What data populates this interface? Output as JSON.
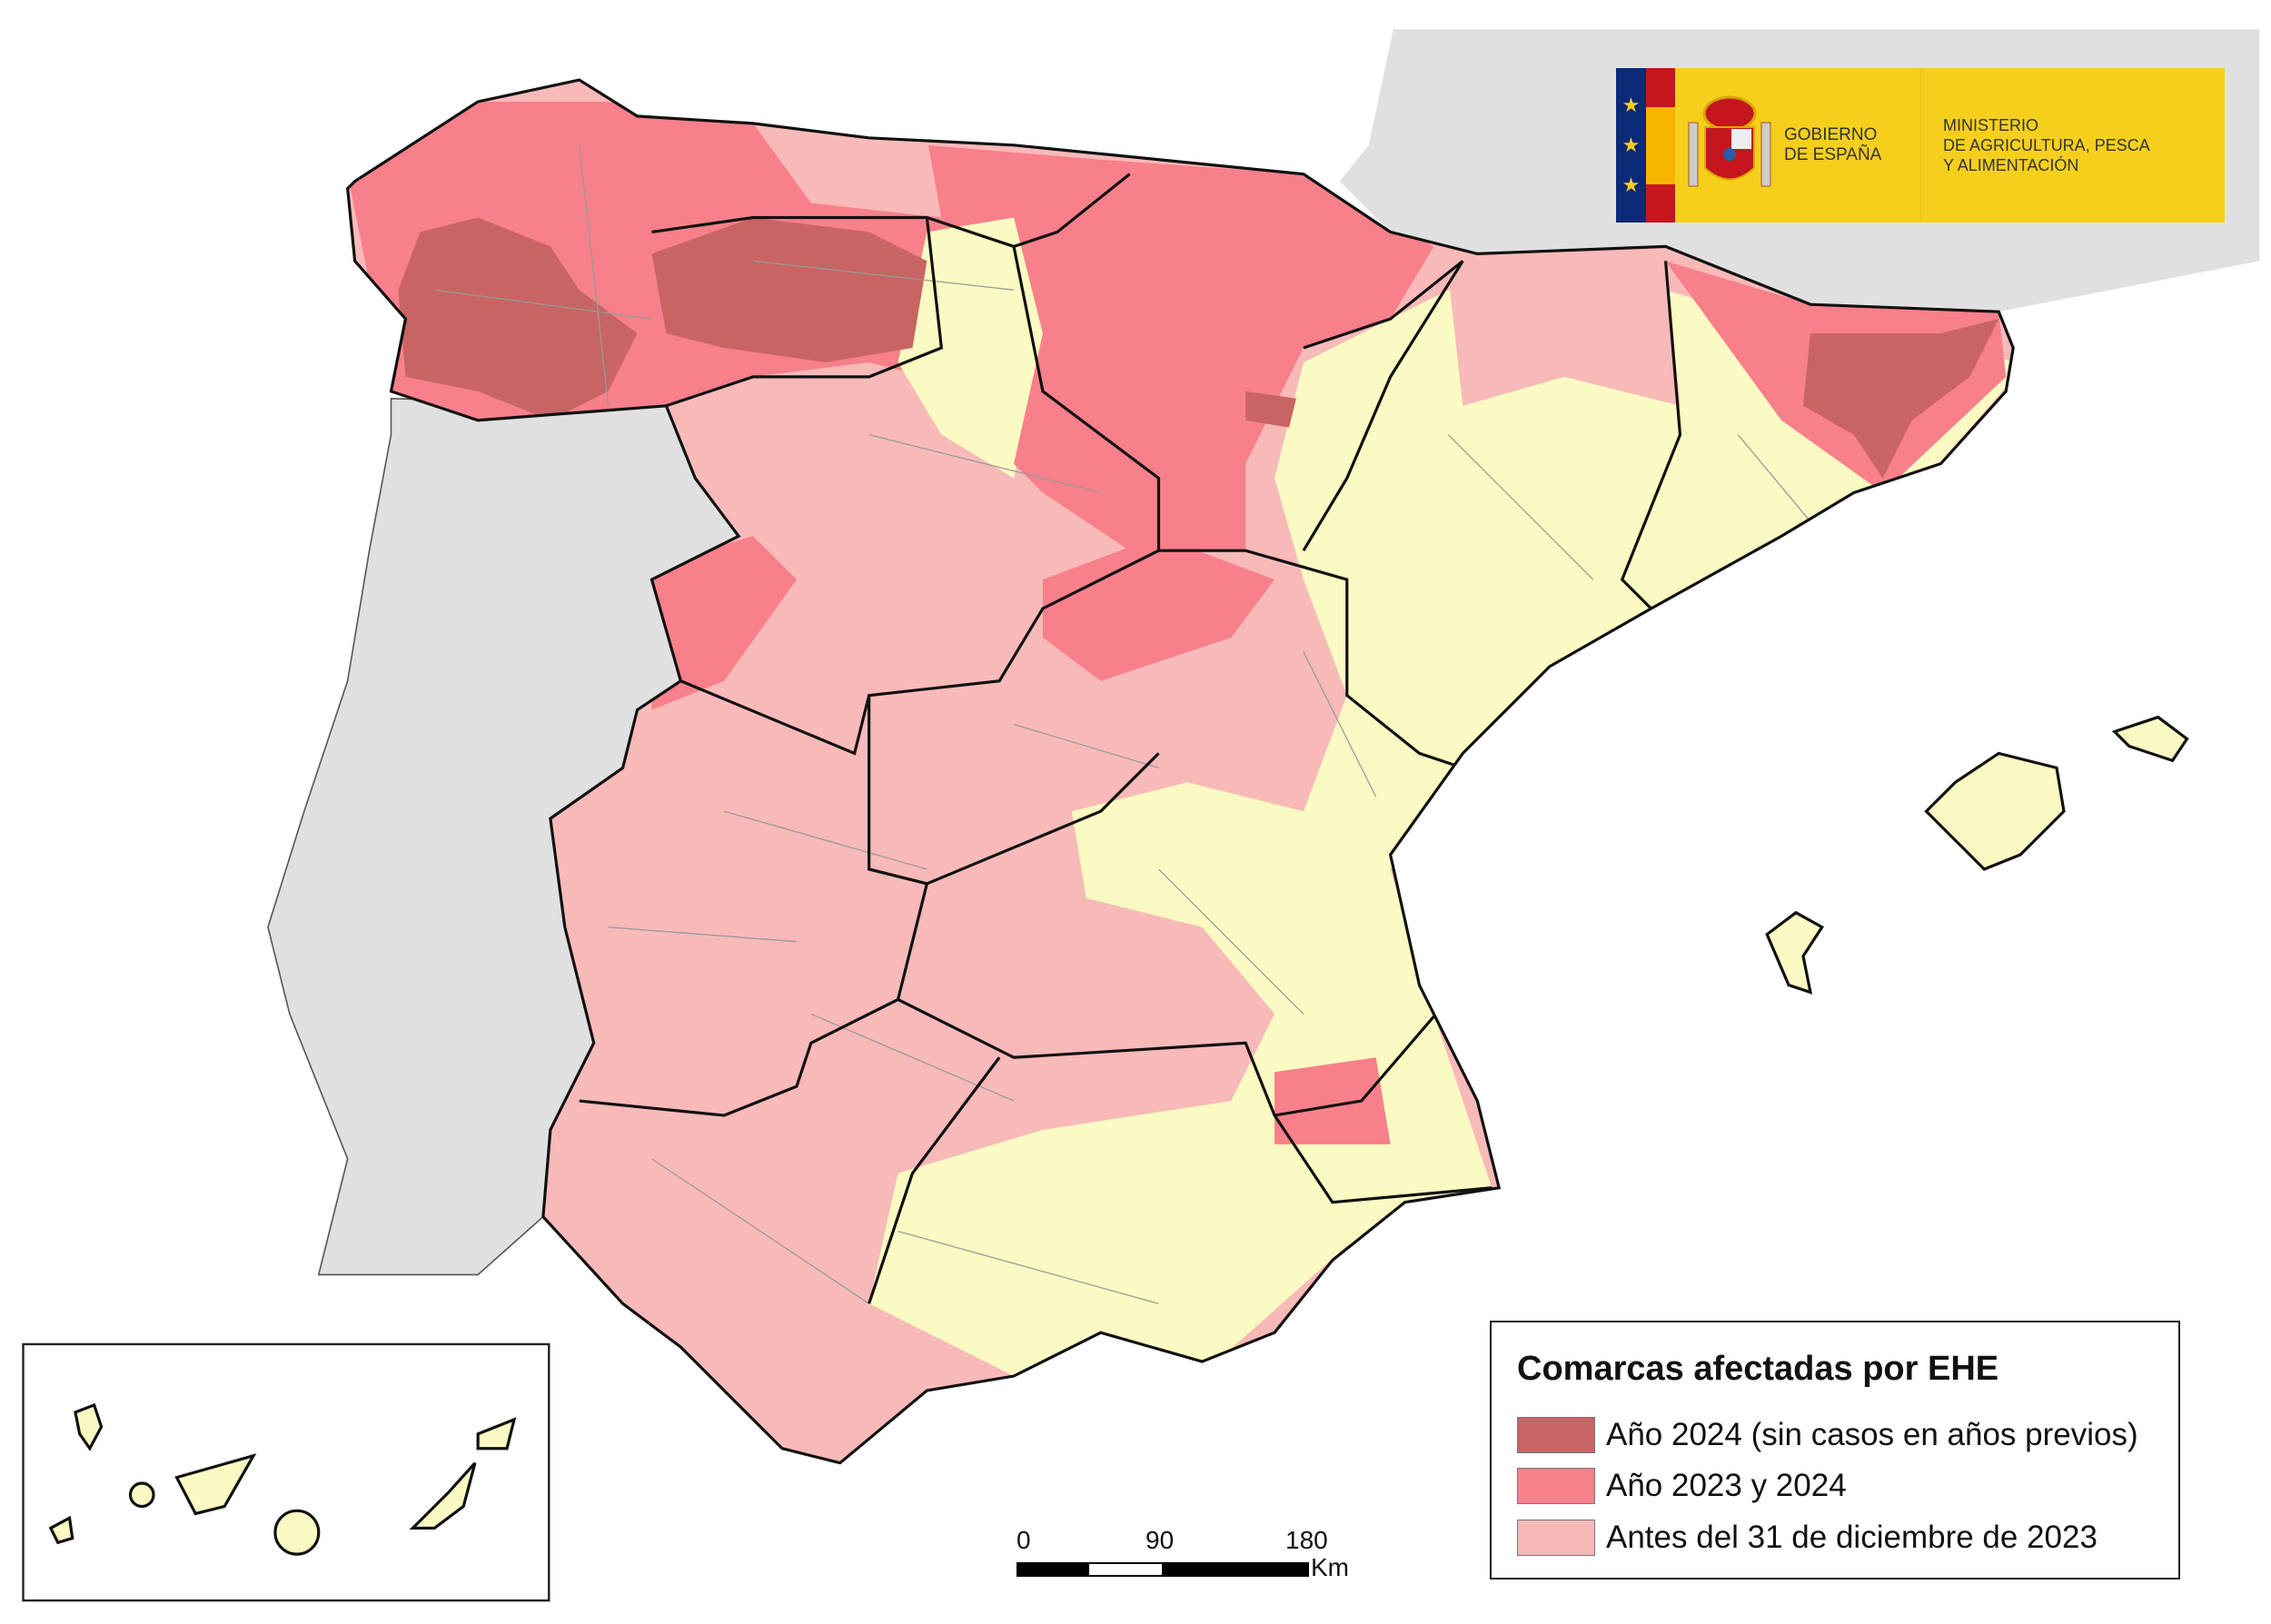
{
  "logo": {
    "government": [
      "GOBIERNO",
      "DE ESPAÑA"
    ],
    "ministry": [
      "MINISTERIO",
      "DE AGRICULTURA, PESCA",
      "Y ALIMENTACIÓN"
    ]
  },
  "legend": {
    "title": "Comarcas afectadas por EHE",
    "items": [
      {
        "label": "Año 2024 (sin casos en años previos)",
        "color": "#c86464"
      },
      {
        "label": "Año 2023 y 2024",
        "color": "#f7808a"
      },
      {
        "label": "Antes del 31 de diciembre de 2023",
        "color": "#f8b9b9"
      }
    ]
  },
  "scale_bar": {
    "labels": [
      "0",
      "90",
      "180"
    ],
    "unit": "Km"
  },
  "colors": {
    "unaffected": "#fbfac2",
    "neighbor_countries": "#e0e0e0",
    "borders": "#222222"
  }
}
